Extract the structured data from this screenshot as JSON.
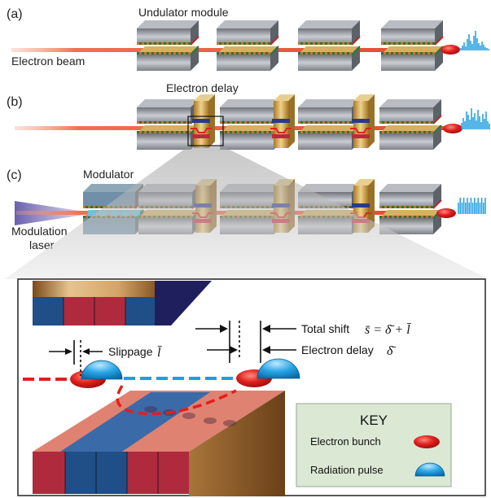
{
  "panels": {
    "a": {
      "label": "(a)",
      "module_label": "Undulator module",
      "beam_label": "Electron beam"
    },
    "b": {
      "label": "(b)",
      "delay_label": "Electron delay"
    },
    "c": {
      "label": "(c)",
      "modulator_label": "Modulator",
      "laser_label_1": "Modulation",
      "laser_label_2": "laser"
    }
  },
  "zoom": {
    "slippage_label": "Slippage",
    "slippage_symbol": "l̄",
    "total_shift_label": "Total shift",
    "total_shift_formula": "s̄ = δ̄ + l̄",
    "electron_delay_label": "Electron delay",
    "electron_delay_symbol": "δ̄"
  },
  "key": {
    "title": "KEY",
    "items": [
      {
        "label": "Electron bunch",
        "icon": "electron-bunch-icon",
        "color": "#e0201e"
      },
      {
        "label": "Radiation pulse",
        "icon": "radiation-pulse-icon",
        "color": "#1e9ee0"
      }
    ]
  },
  "colors": {
    "beam": "#f07050",
    "electron": "#e0201e",
    "radiation": "#1e9ee0",
    "magnet_top": "#8a8d94",
    "magnet_gold": "#c89a40",
    "key_bg": "#dbe9d4",
    "laser": "#7a6fb8"
  }
}
